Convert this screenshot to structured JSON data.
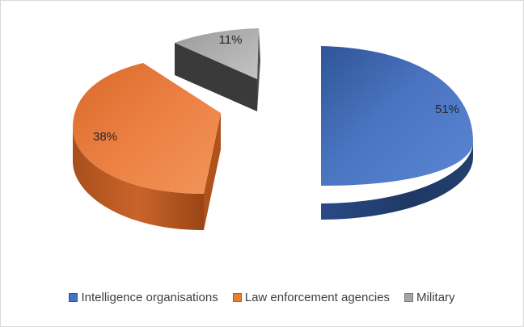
{
  "chart_data": {
    "type": "pie",
    "title": "",
    "categories": [
      "Intelligence organisations",
      "Law enforcement agencies",
      "Military"
    ],
    "values": [
      51,
      38,
      11
    ],
    "data_labels": [
      "51%",
      "38%",
      "11%"
    ],
    "colors": [
      "#4472c4",
      "#ed7d31",
      "#a5a5a5"
    ],
    "exploded": true,
    "three_d": true,
    "legend_position": "bottom"
  }
}
